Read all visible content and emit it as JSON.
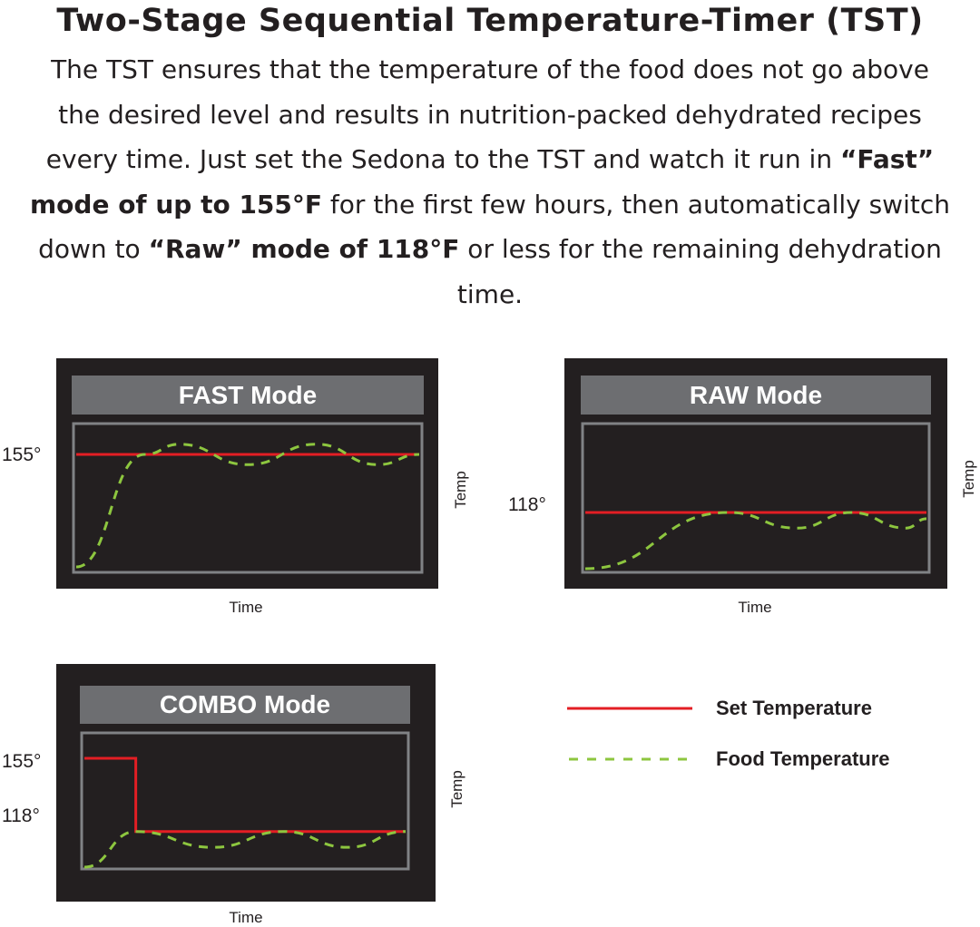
{
  "title": "Two-Stage Sequential Temperature-Timer (TST)",
  "intro": {
    "part1": "The TST ensures that the temperature of the food does not go above the desired level and results in nutrition-packed dehydrated recipes every time. Just set the Sedona to the TST and watch it run in ",
    "bold1": "“Fast” mode of up to 155°F",
    "part2": " for the first few hours, then automatically switch down to ",
    "bold2": "“Raw” mode of 118°F",
    "part3": " or less for the remaining dehydration time."
  },
  "colors": {
    "set_temperature": "#e31e24",
    "food_temperature": "#8dc63f",
    "panel_bg": "#231f20",
    "panel_header": "#6d6e71",
    "plot_border": "#808285"
  },
  "panels": {
    "fast": {
      "label": "FAST Mode",
      "tick": "155°",
      "xlabel": "Time",
      "ylabel": "Temp",
      "set_temp": [
        [
          0,
          155
        ],
        [
          1,
          155
        ]
      ],
      "food_temp": [
        [
          0,
          100
        ],
        [
          0.2,
          155
        ],
        [
          0.3,
          160
        ],
        [
          0.5,
          150
        ],
        [
          0.7,
          160
        ],
        [
          0.88,
          150
        ],
        [
          1,
          155
        ]
      ]
    },
    "raw": {
      "label": "RAW Mode",
      "tick": "118°",
      "xlabel": "Time",
      "ylabel": "Temp",
      "set_temp": [
        [
          0,
          118
        ],
        [
          1,
          118
        ]
      ],
      "food_temp": [
        [
          0,
          100
        ],
        [
          0.42,
          118
        ],
        [
          0.62,
          113
        ],
        [
          0.78,
          118
        ],
        [
          0.94,
          113
        ],
        [
          1,
          116
        ]
      ]
    },
    "combo": {
      "label": "COMBO Mode",
      "tick_high": "155°",
      "tick_low": "118°",
      "xlabel": "Time",
      "ylabel": "Temp",
      "set_temp": [
        [
          0,
          155
        ],
        [
          0.16,
          155
        ],
        [
          0.16,
          118
        ],
        [
          1,
          118
        ]
      ],
      "food_temp": [
        [
          0,
          100
        ],
        [
          0.16,
          118
        ],
        [
          0.4,
          110
        ],
        [
          0.62,
          118
        ],
        [
          0.82,
          110
        ],
        [
          1,
          118
        ]
      ]
    }
  },
  "legend": {
    "set_label": "Set Temperature",
    "food_label": "Food Temperature"
  }
}
